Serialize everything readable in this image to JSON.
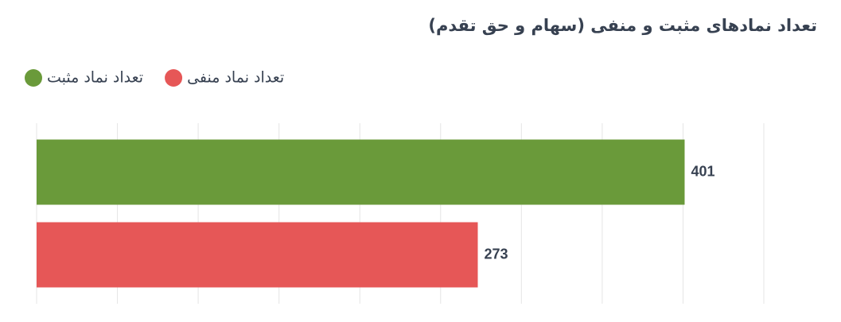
{
  "chart_data": {
    "type": "hbar",
    "title": "تعداد نمادهای مثبت و منفی (سهام و حق تقدم)",
    "categories": [
      null
    ],
    "series": [
      {
        "name": "تعداد نماد مثبت",
        "color": "#6a9a3a",
        "values": [
          401
        ]
      },
      {
        "name": "تعداد نماد منفی",
        "color": "#e65757",
        "values": [
          273
        ]
      }
    ],
    "xlim": [
      0,
      450
    ],
    "xticks": [
      0,
      50,
      100,
      150,
      200,
      250,
      300,
      350,
      400,
      450
    ],
    "grid": true,
    "legend": "top-left"
  }
}
